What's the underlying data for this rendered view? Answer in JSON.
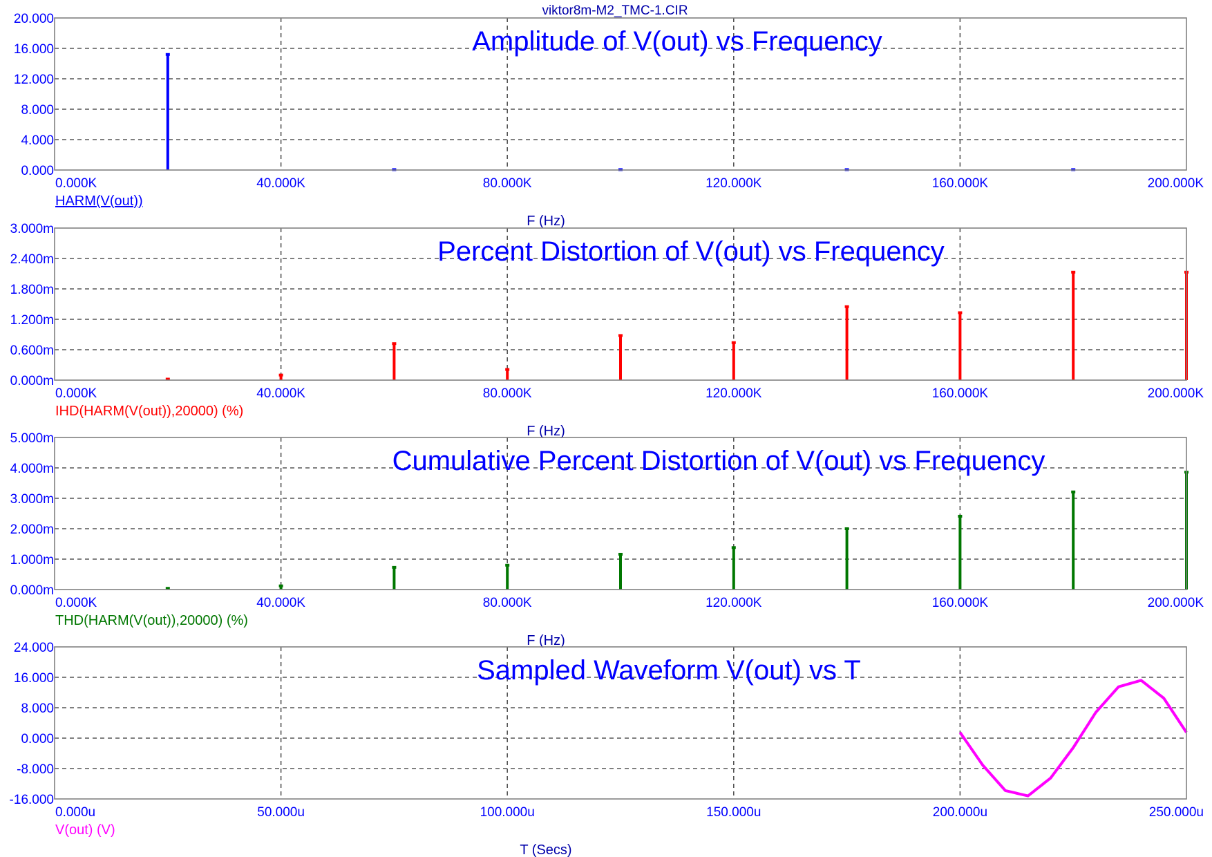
{
  "window": {
    "file_title": "viktor8m-M2_TMC-1.CIR"
  },
  "colors": {
    "frame": "#808080",
    "grid": "#555555",
    "tick_text": "#0000ff",
    "axis_label": "#0000aa",
    "title": "#0000ff"
  },
  "chart_data": [
    {
      "type": "bar",
      "title": "Amplitude of V(out) vs Frequency",
      "xlabel": "F (Hz)",
      "trace_label": "HARM(V(out))",
      "color": "#0000ff",
      "xlim": [
        0,
        200000
      ],
      "ylim": [
        0,
        20
      ],
      "x_ticks": [
        "0.000K",
        "40.000K",
        "80.000K",
        "120.000K",
        "160.000K",
        "200.000K"
      ],
      "y_ticks": [
        "20.000",
        "16.000",
        "12.000",
        "8.000",
        "4.000",
        "0.000"
      ],
      "x": [
        20000,
        60000,
        100000,
        140000,
        180000
      ],
      "values": [
        15.2,
        0.05,
        0.05,
        0.05,
        0.05
      ],
      "grid": true
    },
    {
      "type": "bar",
      "title": "Percent Distortion of V(out) vs Frequency",
      "xlabel": "F (Hz)",
      "trace_label": "IHD(HARM(V(out)),20000) (%)",
      "color": "#ff0000",
      "xlim": [
        0,
        200000
      ],
      "ylim": [
        0,
        0.003
      ],
      "x_ticks": [
        "0.000K",
        "40.000K",
        "80.000K",
        "120.000K",
        "160.000K",
        "200.000K"
      ],
      "y_ticks": [
        "3.000m",
        "2.400m",
        "1.800m",
        "1.200m",
        "0.600m",
        "0.000m"
      ],
      "x": [
        20000,
        40000,
        60000,
        80000,
        100000,
        120000,
        140000,
        160000,
        180000,
        200000
      ],
      "values": [
        2e-05,
        0.0001,
        0.00072,
        0.00021,
        0.00088,
        0.00074,
        0.00145,
        0.00133,
        0.00213,
        0.00213
      ],
      "grid": true
    },
    {
      "type": "bar",
      "title": "Cumulative Percent Distortion of V(out) vs Frequency",
      "xlabel": "F (Hz)",
      "trace_label": "THD(HARM(V(out)),20000) (%)",
      "color": "#007700",
      "xlim": [
        0,
        200000
      ],
      "ylim": [
        0,
        0.005
      ],
      "x_ticks": [
        "0.000K",
        "40.000K",
        "80.000K",
        "120.000K",
        "160.000K",
        "200.000K"
      ],
      "y_ticks": [
        "5.000m",
        "4.000m",
        "3.000m",
        "2.000m",
        "1.000m",
        "0.000m"
      ],
      "x": [
        20000,
        40000,
        60000,
        80000,
        100000,
        120000,
        140000,
        160000,
        180000,
        200000
      ],
      "values": [
        4e-05,
        0.00012,
        0.00073,
        0.0008,
        0.00116,
        0.00138,
        0.002,
        0.00241,
        0.00321,
        0.00386
      ],
      "grid": true
    },
    {
      "type": "line",
      "title": "Sampled Waveform  V(out) vs T",
      "xlabel": "T (Secs)",
      "trace_label": "V(out) (V)",
      "color": "#ff00ff",
      "xlim": [
        0,
        0.00025
      ],
      "ylim": [
        -16,
        24
      ],
      "x_ticks": [
        "0.000u",
        "50.000u",
        "100.000u",
        "150.000u",
        "200.000u",
        "250.000u"
      ],
      "y_ticks": [
        "24.000",
        "16.000",
        "8.000",
        "0.000",
        "-8.000",
        "-16.000"
      ],
      "x": [
        0.0002,
        0.000205,
        0.00021,
        0.000215,
        0.00022,
        0.000225,
        0.00023,
        0.000235,
        0.00024,
        0.000245,
        0.00025
      ],
      "values": [
        1.5,
        -7.1,
        -13.8,
        -15.2,
        -10.5,
        -2.5,
        6.8,
        13.5,
        15.2,
        10.5,
        1.5
      ],
      "grid": true
    }
  ]
}
